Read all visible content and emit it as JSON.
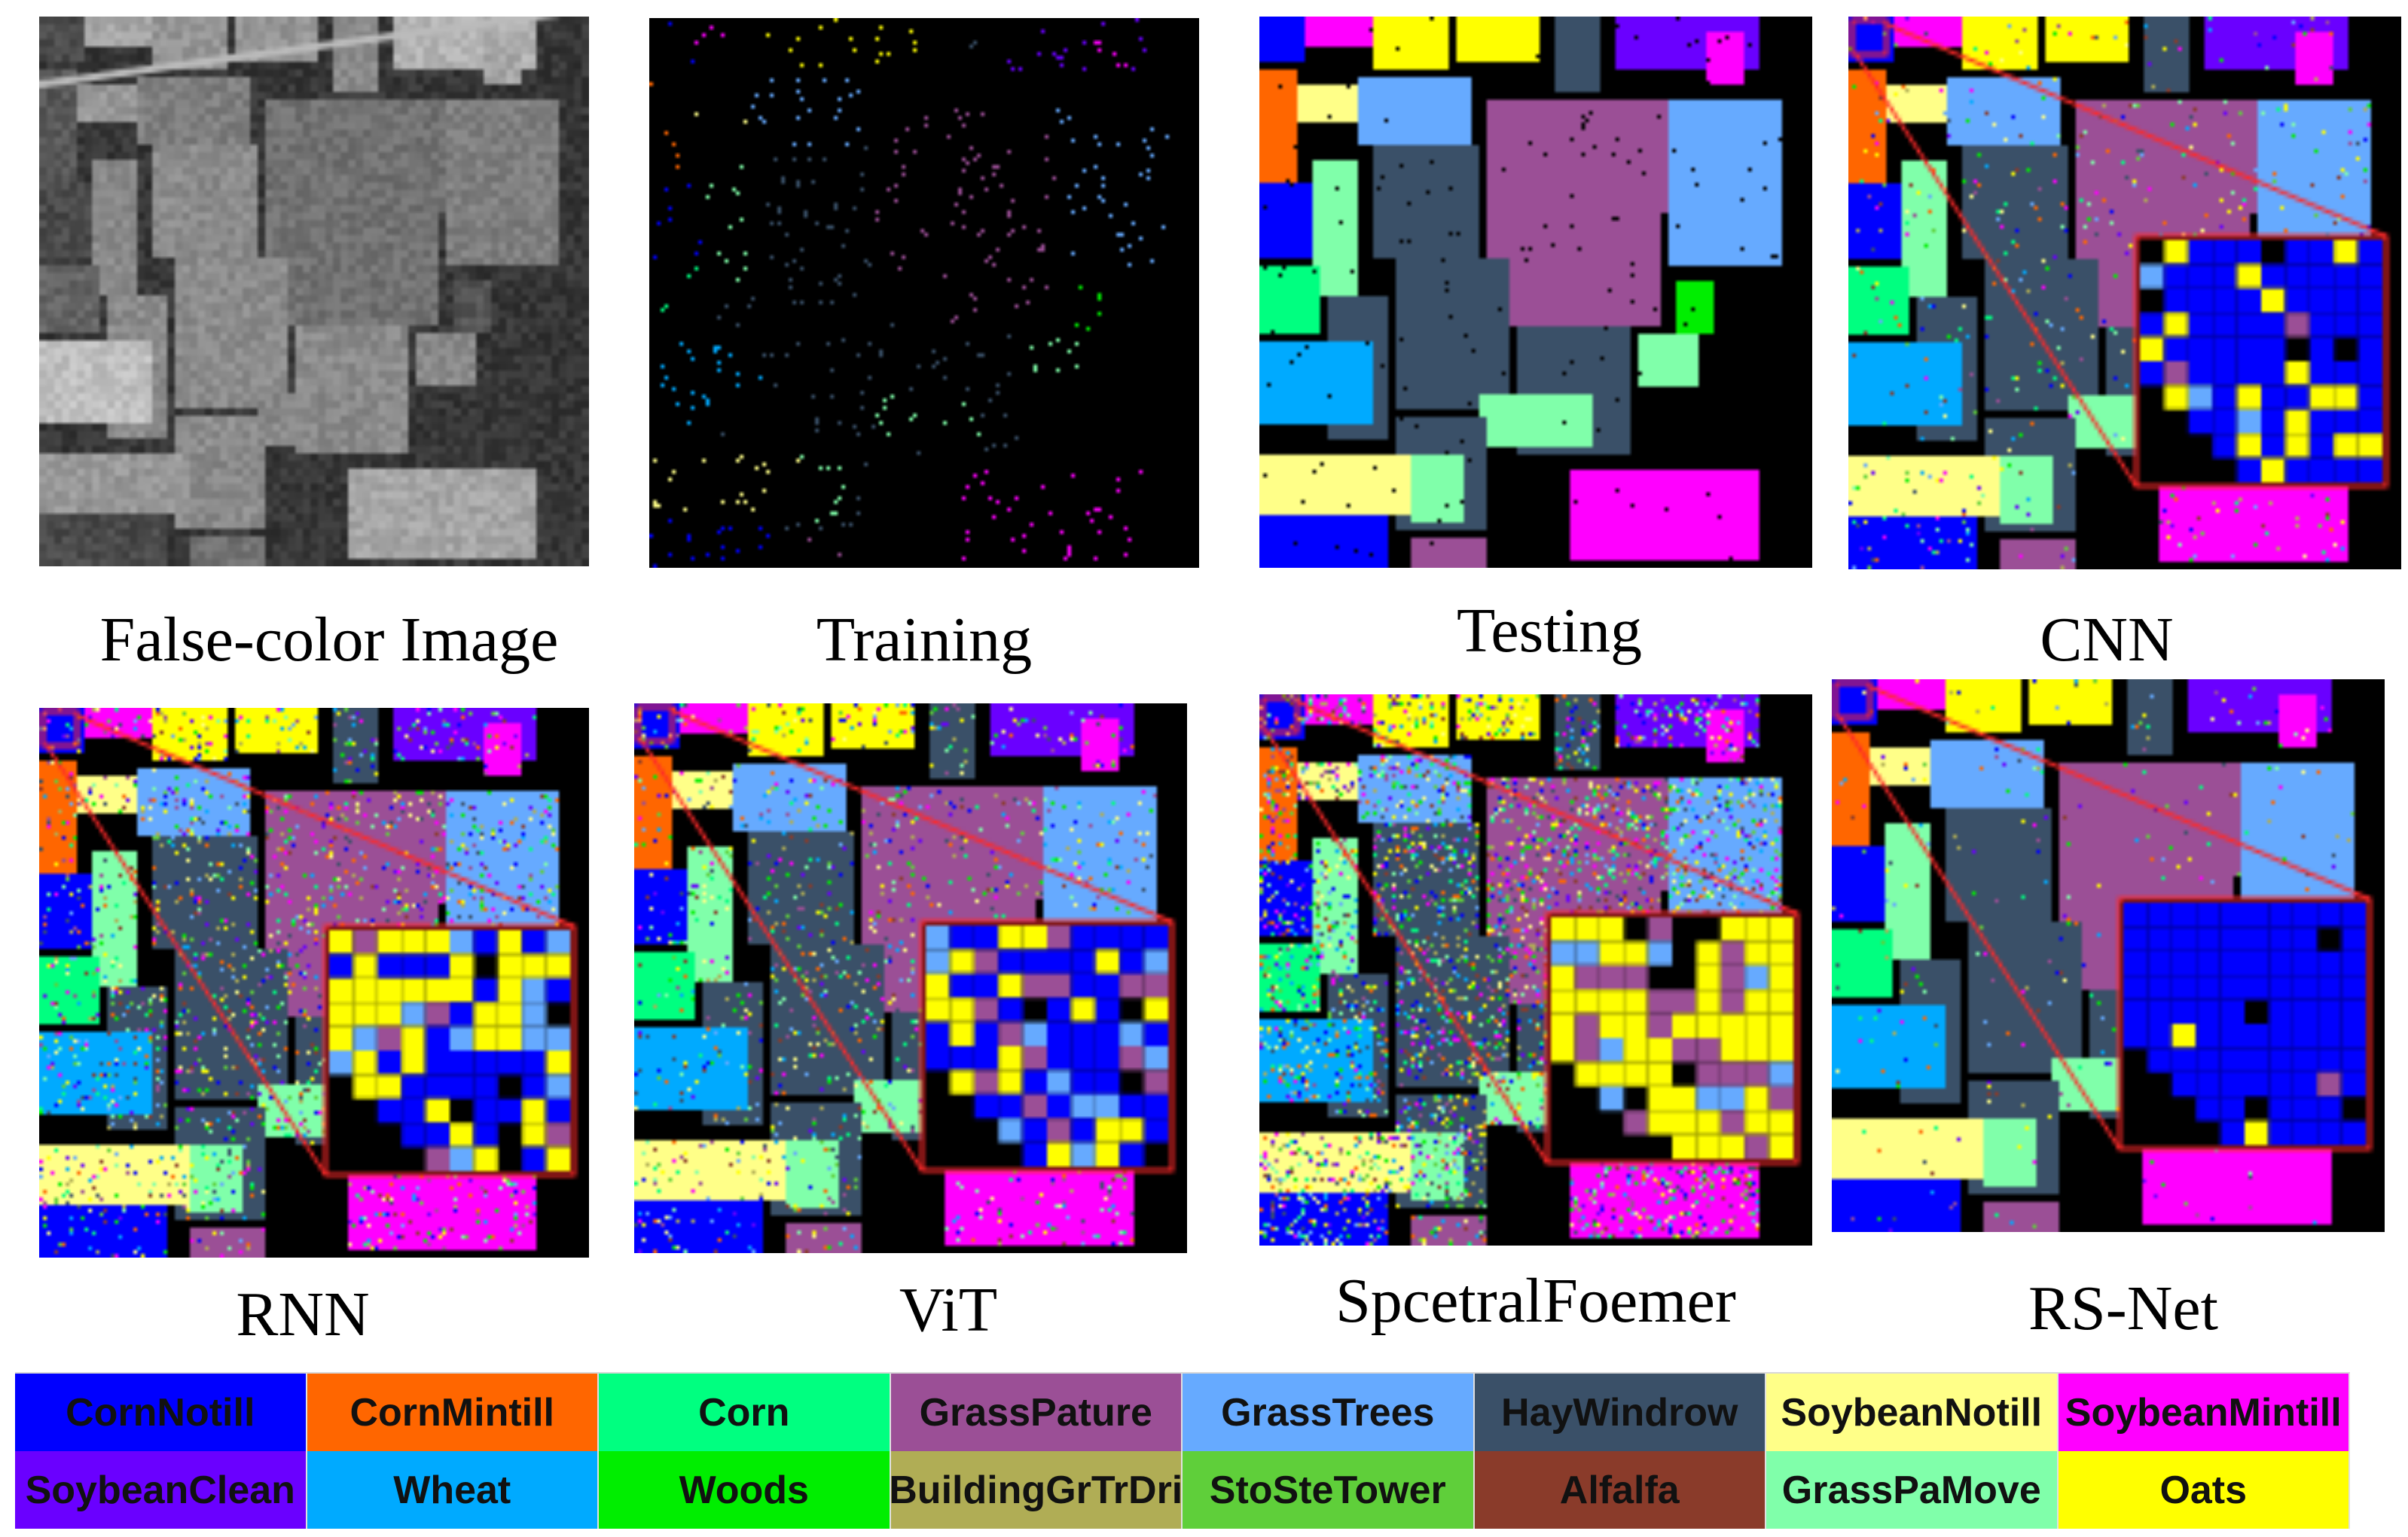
{
  "figure": {
    "panels": [
      {
        "id": "false-color",
        "caption": "False-color Image",
        "kind": "gray"
      },
      {
        "id": "training",
        "caption": "Training",
        "kind": "sparse"
      },
      {
        "id": "testing",
        "caption": "Testing",
        "kind": "full"
      },
      {
        "id": "cnn",
        "caption": "CNN",
        "kind": "pred",
        "zoom": true
      },
      {
        "id": "rnn",
        "caption": "RNN",
        "kind": "pred",
        "zoom": true
      },
      {
        "id": "vit",
        "caption": "ViT",
        "kind": "pred",
        "zoom": true
      },
      {
        "id": "spectralformer",
        "caption": "SpcetralFoemer",
        "kind": "pred",
        "zoom": true
      },
      {
        "id": "rs-net",
        "caption": "RS-Net",
        "kind": "pred",
        "zoom": true
      }
    ],
    "legend": [
      {
        "label": "CornNotill",
        "color": "#0000ff"
      },
      {
        "label": "CornMintill",
        "color": "#ff6600"
      },
      {
        "label": "Corn",
        "color": "#00ff80"
      },
      {
        "label": "GrassPature",
        "color": "#9b4f96"
      },
      {
        "label": "GrassTrees",
        "color": "#66aaff"
      },
      {
        "label": "HayWindrow",
        "color": "#3a5068"
      },
      {
        "label": "SoybeanNotill",
        "color": "#ffff88"
      },
      {
        "label": "SoybeanMintill",
        "color": "#ff00ff"
      },
      {
        "label": "SoybeanClean",
        "color": "#6a00ff"
      },
      {
        "label": "Wheat",
        "color": "#00aaff"
      },
      {
        "label": "Woods",
        "color": "#00ee00"
      },
      {
        "label": "BuildingGrTrDri",
        "color": "#b0ad55"
      },
      {
        "label": "StoSteTower",
        "color": "#5fcf3a"
      },
      {
        "label": "Alfalfa",
        "color": "#8a3b2a"
      },
      {
        "label": "GrassPaMove",
        "color": "#80ffaa"
      },
      {
        "label": "Oats",
        "color": "#ffff00"
      }
    ],
    "zoom_box_color": "#ff2a2a"
  }
}
